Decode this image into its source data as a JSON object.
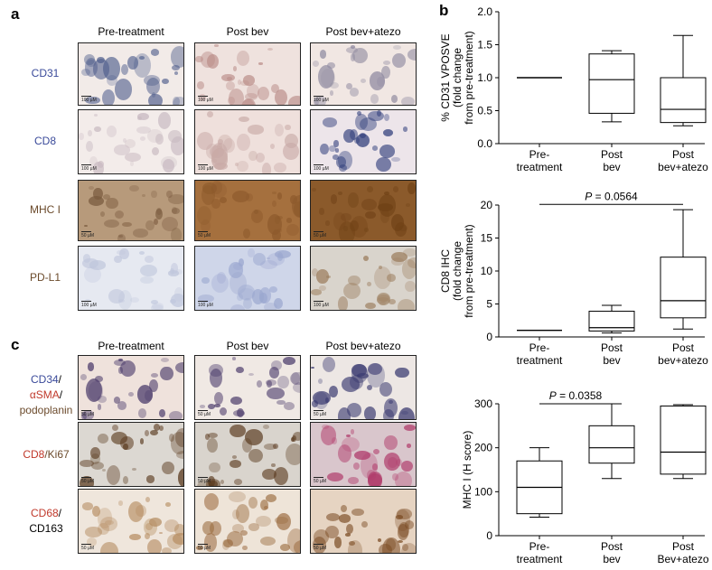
{
  "panels": {
    "a": "a",
    "b": "b",
    "c": "c"
  },
  "panel_a": {
    "columns": [
      "Pre-treatment",
      "Post bev",
      "Post bev+atezo"
    ],
    "rows": [
      {
        "label": "CD31",
        "color": "#3a4a9a",
        "bg": [
          "#f2ebe8",
          "#efe2de",
          "#f1e7e3"
        ],
        "stain": [
          "#4b5a8a",
          "#b88a86",
          "#8f8aa0"
        ],
        "scale": "100 µM"
      },
      {
        "label": "CD8",
        "color": "#3a4a9a",
        "bg": [
          "#f3ecea",
          "#efe0dc",
          "#ede5ea"
        ],
        "stain": [
          "#c7b8c0",
          "#c8a9a6",
          "#2e3c7a"
        ],
        "scale": "100 µM"
      },
      {
        "label": "MHC I",
        "color": "#6b4a2b",
        "bg": [
          "#b79a7b",
          "#a5703e",
          "#8b5a2b"
        ],
        "stain": [
          "#7a5a3e",
          "#8d5a2c",
          "#6f4116"
        ],
        "scale": "50 µM"
      },
      {
        "label": "PD-L1",
        "color": "#6b4a2b",
        "bg": [
          "#e6e9f1",
          "#cfd6e9",
          "#d9d4cc"
        ],
        "stain": [
          "#bfc6dc",
          "#9aa6cf",
          "#9a7b5a"
        ],
        "scale": "100 µM"
      }
    ]
  },
  "panel_c": {
    "columns": [
      "Pre-treatment",
      "Post bev",
      "Post bev+atezo"
    ],
    "rows": [
      {
        "label_parts": [
          {
            "text": "CD34",
            "color": "#3a4a9a"
          },
          {
            "text": "/",
            "color": "#000000"
          },
          {
            "text": "αSMA",
            "color": "#c0392b"
          },
          {
            "text": "/",
            "color": "#000000"
          }
        ],
        "label_line2": [
          {
            "text": "podoplanin",
            "color": "#6b4a2b"
          }
        ],
        "bg": [
          "#efe2dc",
          "#f0e9e4",
          "#ede7e4"
        ],
        "stain": [
          "#4a3a6a",
          "#4a3a6a",
          "#3a3a70"
        ],
        "scale": "50 µM"
      },
      {
        "label_parts": [
          {
            "text": "CD8",
            "color": "#c0392b"
          },
          {
            "text": "/Ki67",
            "color": "#6b4a2b"
          }
        ],
        "label_line2": [],
        "bg": [
          "#dcd8d2",
          "#d9d4cd",
          "#d9c6cc"
        ],
        "stain": [
          "#5a3a1e",
          "#5a3a1e",
          "#b03a6a"
        ],
        "scale": "50 µM"
      },
      {
        "label_parts": [
          {
            "text": "CD68",
            "color": "#c0392b"
          },
          {
            "text": "/",
            "color": "#000000"
          }
        ],
        "label_line2": [
          {
            "text": "CD163",
            "color": "#000000"
          }
        ],
        "bg": [
          "#efe6dc",
          "#eee4d8",
          "#e6d4c2"
        ],
        "stain": [
          "#b48a5e",
          "#9a6a3e",
          "#7a4a22"
        ],
        "scale": "50 µM"
      }
    ]
  },
  "chart_data": [
    {
      "type": "box",
      "ylabel_lines": [
        "% CD31 VPOSVE",
        "(fold change",
        "from pre-treatment)"
      ],
      "ylim": [
        0,
        2.0
      ],
      "yticks": [
        "0.0",
        "0.5",
        "1.0",
        "1.5",
        "2.0"
      ],
      "categories": [
        [
          "Pre-",
          "treatment"
        ],
        [
          "Post",
          "bev"
        ],
        [
          "Post",
          "bev+atezo"
        ]
      ],
      "boxes": [
        {
          "min": 1.0,
          "q1": 1.0,
          "median": 1.0,
          "q3": 1.0,
          "max": 1.0
        },
        {
          "min": 0.33,
          "q1": 0.46,
          "median": 0.97,
          "q3": 1.36,
          "max": 1.41
        },
        {
          "min": 0.27,
          "q1": 0.32,
          "median": 0.52,
          "q3": 1.0,
          "max": 1.64
        }
      ],
      "annotation": null
    },
    {
      "type": "box",
      "ylabel_lines": [
        "CD8 IHC",
        "(fold change",
        "from pre-treatment)"
      ],
      "ylim": [
        0,
        20
      ],
      "yticks": [
        "0",
        "5",
        "10",
        "15",
        "20"
      ],
      "categories": [
        [
          "Pre-",
          "treatment"
        ],
        [
          "Post",
          "bev"
        ],
        [
          "Post",
          "bev+atezo"
        ]
      ],
      "boxes": [
        {
          "min": 1.0,
          "q1": 1.0,
          "median": 1.0,
          "q3": 1.0,
          "max": 1.0
        },
        {
          "min": 0.6,
          "q1": 0.9,
          "median": 1.4,
          "q3": 3.9,
          "max": 4.8
        },
        {
          "min": 1.2,
          "q1": 2.9,
          "median": 5.5,
          "q3": 12.1,
          "max": 19.3
        }
      ],
      "annotation": {
        "p_label": "P",
        "p_value": " = 0.0564",
        "from": 0,
        "to": 2,
        "y": 20.1
      }
    },
    {
      "type": "box",
      "ylabel_lines": [
        "MHC I (H score)"
      ],
      "ylim": [
        0,
        300
      ],
      "yticks": [
        "0",
        "100",
        "200",
        "300"
      ],
      "categories": [
        [
          "Pre-",
          "treatment"
        ],
        [
          "Post",
          "bev"
        ],
        [
          "Post",
          "Bev+atezo"
        ]
      ],
      "boxes": [
        {
          "min": 42,
          "q1": 50,
          "median": 110,
          "q3": 170,
          "max": 200
        },
        {
          "min": 130,
          "q1": 165,
          "median": 200,
          "q3": 250,
          "max": 300
        },
        {
          "min": 130,
          "q1": 140,
          "median": 190,
          "q3": 295,
          "max": 298
        }
      ],
      "annotation": {
        "p_label": "P",
        "p_value": " = 0.0358",
        "from": 0,
        "to": 1,
        "y": 300
      }
    }
  ]
}
